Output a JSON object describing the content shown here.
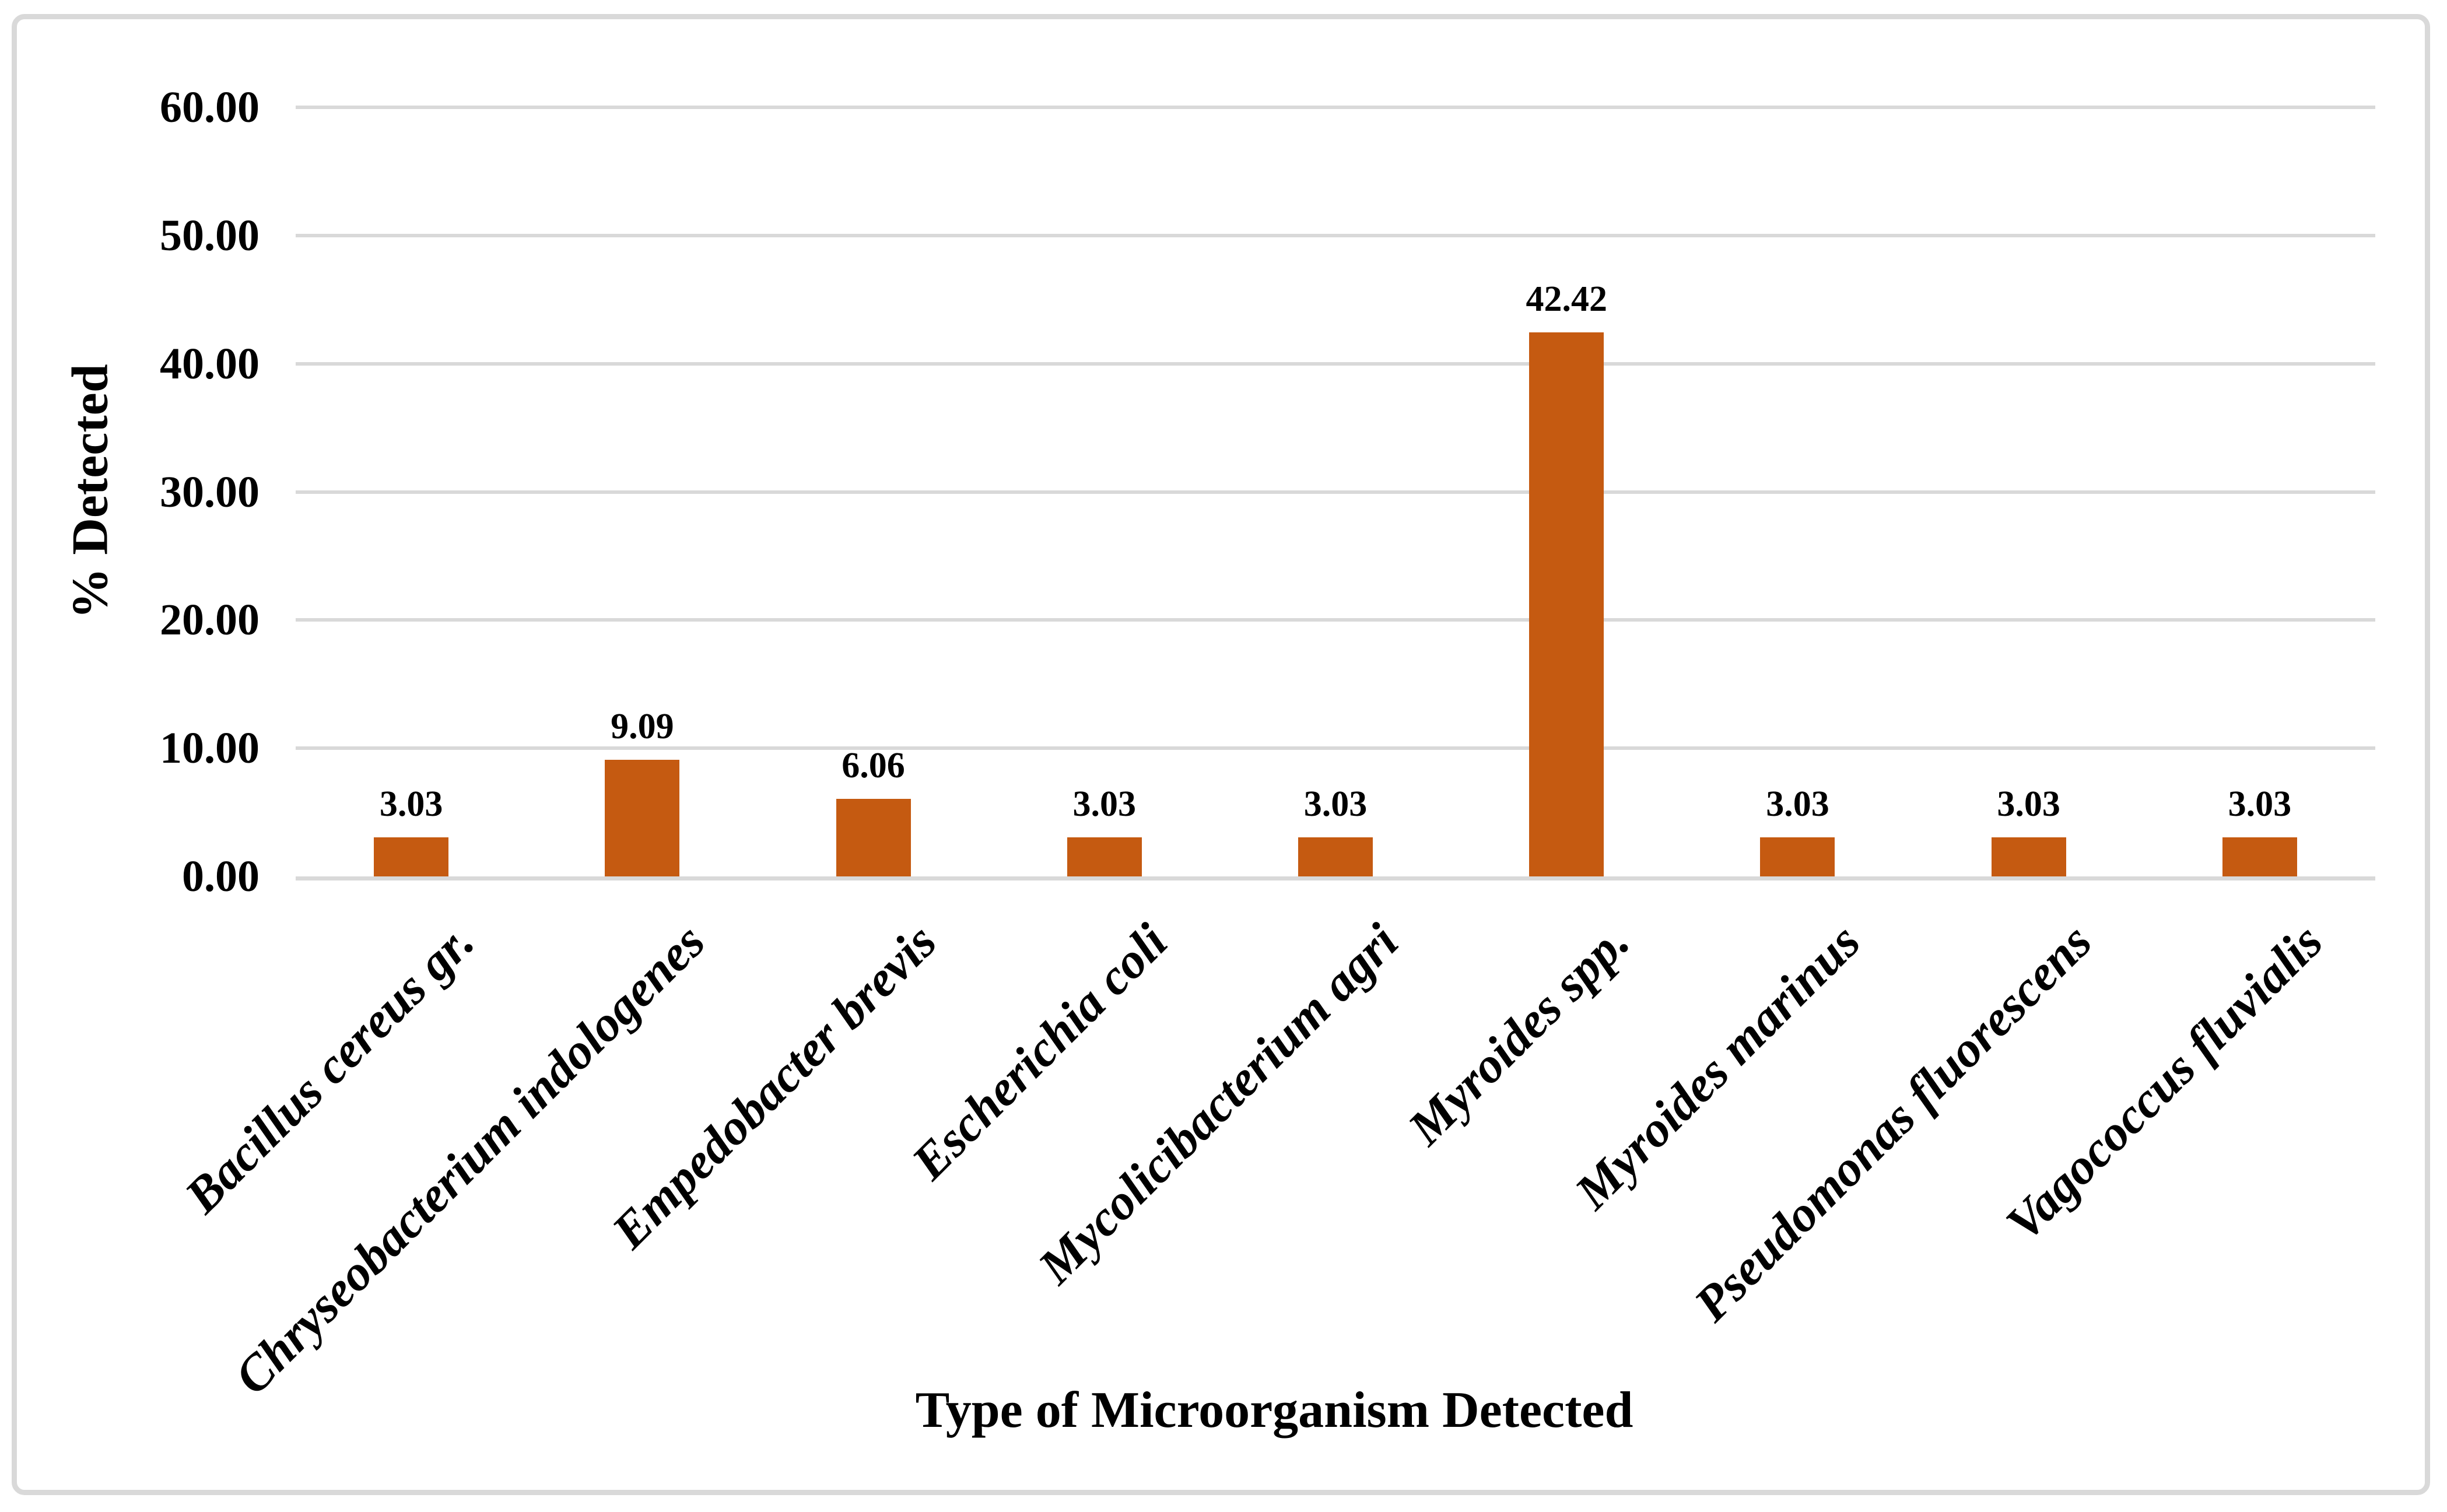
{
  "figure": {
    "background": "#FFFFFF",
    "border_color": "#D9D9D9"
  },
  "chart_data": {
    "type": "bar",
    "title": "",
    "categories": [
      "Bacillus cereus gr.",
      "Chryseobacterium indologenes",
      "Empedobacter brevis",
      "Escherichia coli",
      "Mycolicibacterium agri",
      "Myroides spp.",
      "Myroides marinus",
      "Pseudomonas fluorescens",
      "Vagococcus fluvialis"
    ],
    "values": [
      3.03,
      9.09,
      6.06,
      3.03,
      3.03,
      42.42,
      3.03,
      3.03,
      3.03
    ],
    "value_labels": [
      "3.03",
      "9.09",
      "6.06",
      "3.03",
      "3.03",
      "42.42",
      "3.03",
      "3.03",
      "3.03"
    ],
    "xlabel": "Type of Microorganism Detected",
    "ylabel": "% Detected",
    "ylim": [
      0,
      60
    ],
    "ytick_step": 10,
    "yticks": [
      {
        "value": 0,
        "label": "0.00"
      },
      {
        "value": 10,
        "label": "10.00"
      },
      {
        "value": 20,
        "label": "20.00"
      },
      {
        "value": 30,
        "label": "30.00"
      },
      {
        "value": 40,
        "label": "40.00"
      },
      {
        "value": 50,
        "label": "50.00"
      },
      {
        "value": 60,
        "label": "60.00"
      }
    ],
    "grid": "horizontal",
    "legend_position": "none",
    "bar_color": "#C55A11",
    "gridline_color": "#D9D9D9",
    "axis_line_color": "#D9D9D9",
    "text_color": "#000000"
  }
}
